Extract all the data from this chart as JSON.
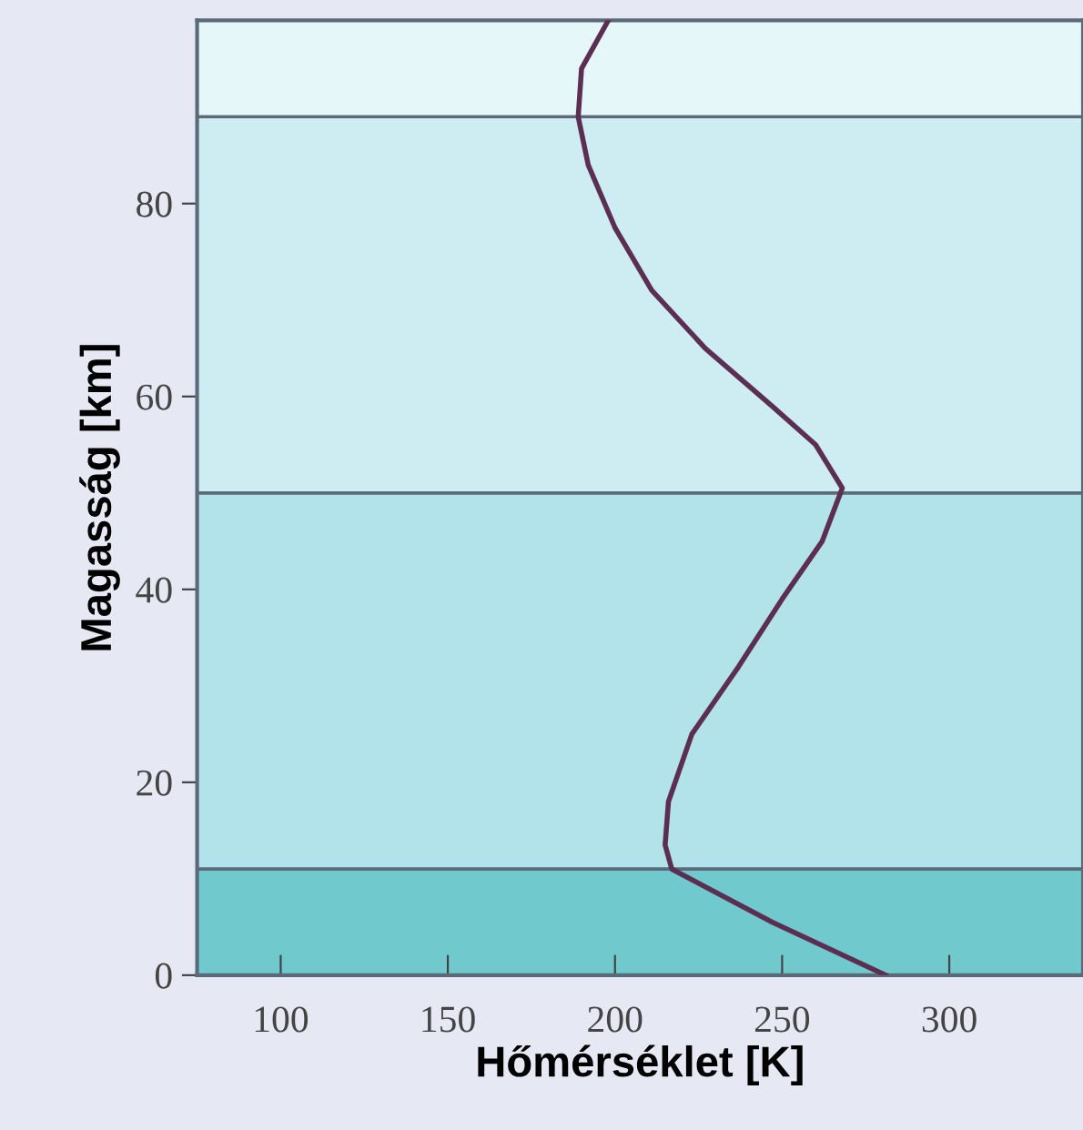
{
  "chart_data": {
    "type": "line",
    "xlabel": "Hőmérséklet [K]",
    "ylabel": "Magasság [km]",
    "xlim": [
      75,
      340
    ],
    "xticks": [
      100,
      150,
      200,
      250,
      300
    ],
    "ylim": [
      0,
      99
    ],
    "yticks": [
      0,
      20,
      40,
      60,
      80
    ],
    "grid": false,
    "legend": false,
    "marker": "none",
    "line_style": "solid",
    "bands": [
      {
        "axis": "y",
        "from": 0,
        "to": 11,
        "color": "#70c9cd"
      },
      {
        "axis": "y",
        "from": 11,
        "to": 50,
        "color": "#b3e3ea"
      },
      {
        "axis": "y",
        "from": 50,
        "to": 89,
        "color": "#cdedf3"
      },
      {
        "axis": "y",
        "from": 89,
        "to": 99,
        "color": "#e6f7f9"
      }
    ],
    "series": [
      {
        "color": "#5c2e52",
        "x": [
          281,
          247,
          217,
          215,
          216,
          223,
          237,
          250,
          262,
          268,
          260,
          247,
          227,
          211,
          200,
          192,
          189,
          190,
          198
        ],
        "values": [
          0,
          5.5,
          11,
          13.5,
          18,
          25,
          32,
          39,
          45,
          50.5,
          55,
          59,
          65,
          71,
          77.5,
          84,
          89,
          94,
          99
        ]
      }
    ]
  }
}
